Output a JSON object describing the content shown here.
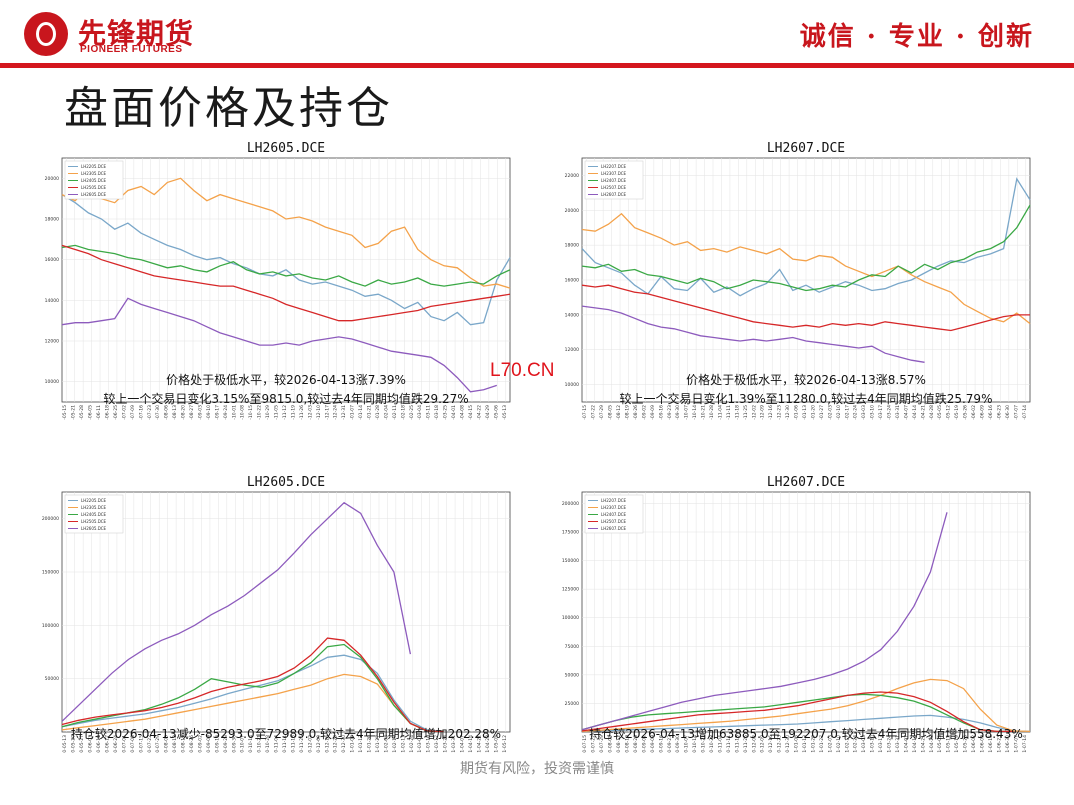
{
  "header": {
    "logo_cn": "先锋期货",
    "logo_en": "PIONEER FUTURES",
    "slogan": "诚信 · 专业 · 创新"
  },
  "page_title": "盘面价格及持仓",
  "watermark": "L70.CN",
  "footer": "期货有风险，投资需谨慎",
  "colors": {
    "c1": "#7aa7c9",
    "c2": "#f4a24a",
    "c3": "#3aa845",
    "c4": "#d62728",
    "c5": "#8d5bbd"
  },
  "chart_data": [
    {
      "type": "line",
      "title": "LH2605.DCE",
      "xlabel": "",
      "ylabel": "",
      "ylim": [
        9000,
        21000
      ],
      "yticks": [
        "10000",
        "12000",
        "14000",
        "16000",
        "18000",
        "20000"
      ],
      "legend": [
        "LH2205.DCE",
        "LH2305.DCE",
        "LH2405.DCE",
        "LH2505.DCE",
        "LH2605.DCE"
      ],
      "legend_position": "top-left",
      "annotation": [
        "价格处于极低水平，较2026-04-13涨7.39%",
        "较上一个交易日变化3.15%至9815.0,较过去4年同期均值跌29.27%"
      ],
      "xticks": [
        "0-05-15",
        "0-05-21",
        "0-05-28",
        "0-06-05",
        "0-06-11",
        "0-06-18",
        "0-06-25",
        "0-07-02",
        "0-07-09",
        "0-07-16",
        "0-07-23",
        "0-07-30",
        "0-08-06",
        "0-08-13",
        "0-08-20",
        "0-08-27",
        "0-09-03",
        "0-09-10",
        "0-09-17",
        "0-09-24",
        "0-10-01",
        "0-10-08",
        "0-10-15",
        "0-10-22",
        "0-10-29",
        "0-11-05",
        "0-11-12",
        "0-11-19",
        "0-11-26",
        "0-12-03",
        "0-12-10",
        "0-12-17",
        "0-12-24",
        "0-12-31",
        "1-01-07",
        "1-01-14",
        "1-01-21",
        "1-01-28",
        "1-02-04",
        "1-02-11",
        "1-02-18",
        "1-02-25",
        "1-03-04",
        "1-03-11",
        "1-03-18",
        "1-03-25",
        "1-04-01",
        "1-04-08",
        "1-04-15",
        "1-04-22",
        "1-04-29",
        "1-05-06",
        "1-05-13"
      ],
      "series": [
        {
          "name": "LH2205.DCE",
          "values": [
            19200,
            18800,
            18300,
            18000,
            17500,
            17800,
            17300,
            17000,
            16700,
            16500,
            16200,
            16000,
            16100,
            15800,
            15600,
            15300,
            15200,
            15500,
            15000,
            14800,
            14900,
            14700,
            14500,
            14200,
            14300,
            14000,
            13600,
            13900,
            13200,
            13000,
            13400,
            12800,
            12900,
            15000,
            16100
          ]
        },
        {
          "name": "LH2305.DCE",
          "values": [
            19200,
            18900,
            19600,
            19000,
            18800,
            19400,
            19600,
            19200,
            19800,
            20000,
            19400,
            18900,
            19200,
            19000,
            18800,
            18600,
            18400,
            18000,
            18100,
            17900,
            17600,
            17400,
            17200,
            16600,
            16800,
            17400,
            17600,
            16500,
            16000,
            15700,
            15600,
            15100,
            14700,
            14800,
            14600
          ]
        },
        {
          "name": "LH2405.DCE",
          "values": [
            16600,
            16700,
            16500,
            16400,
            16300,
            16100,
            16000,
            15800,
            15600,
            15700,
            15500,
            15400,
            15700,
            15900,
            15500,
            15300,
            15400,
            15200,
            15300,
            15100,
            15000,
            15200,
            14900,
            14700,
            15000,
            14800,
            14900,
            15100,
            14800,
            14700,
            14800,
            14900,
            14800,
            15200,
            15500
          ]
        },
        {
          "name": "LH2505.DCE",
          "values": [
            16700,
            16500,
            16300,
            16000,
            15800,
            15600,
            15400,
            15200,
            15100,
            15000,
            14900,
            14800,
            14700,
            14700,
            14500,
            14300,
            14100,
            13800,
            13600,
            13400,
            13200,
            13000,
            13000,
            13100,
            13200,
            13300,
            13400,
            13500,
            13700,
            13800,
            13900,
            14000,
            14100,
            14200,
            14300
          ]
        },
        {
          "name": "LH2605.DCE",
          "values": [
            12800,
            12900,
            12900,
            13000,
            13100,
            14100,
            13800,
            13600,
            13400,
            13200,
            13000,
            12700,
            12400,
            12200,
            12000,
            11800,
            11800,
            11900,
            11800,
            12000,
            12100,
            12200,
            12100,
            11900,
            11700,
            11500,
            11400,
            11300,
            11200,
            10800,
            10200,
            9500,
            9600,
            9815
          ]
        }
      ]
    },
    {
      "type": "line",
      "title": "LH2607.DCE",
      "xlabel": "",
      "ylabel": "",
      "ylim": [
        9000,
        23000
      ],
      "yticks": [
        "10000",
        "12000",
        "14000",
        "16000",
        "18000",
        "20000",
        "22000"
      ],
      "legend": [
        "LH2207.DCE",
        "LH2307.DCE",
        "LH2407.DCE",
        "LH2507.DCE",
        "LH2607.DCE"
      ],
      "legend_position": "top-left",
      "annotation": [
        "价格处于极低水平，较2026-04-13涨8.57%",
        "较上一个交易日变化1.39%至11280.0,较过去4年同期均值跌25.79%"
      ],
      "xticks": [
        "0-07-15",
        "0-07-22",
        "0-07-29",
        "0-08-05",
        "0-08-12",
        "0-08-19",
        "0-08-26",
        "0-09-02",
        "0-09-09",
        "0-09-16",
        "0-09-23",
        "0-09-30",
        "0-10-07",
        "0-10-14",
        "0-10-21",
        "0-10-28",
        "0-11-04",
        "0-11-11",
        "0-11-18",
        "0-11-25",
        "0-12-02",
        "0-12-09",
        "0-12-16",
        "0-12-23",
        "0-12-30",
        "1-01-06",
        "1-01-13",
        "1-01-20",
        "1-01-27",
        "1-02-03",
        "1-02-10",
        "1-02-17",
        "1-02-24",
        "1-03-03",
        "1-03-10",
        "1-03-17",
        "1-03-24",
        "1-03-31",
        "1-04-07",
        "1-04-14",
        "1-04-21",
        "1-04-28",
        "1-05-05",
        "1-05-12",
        "1-05-19",
        "1-05-26",
        "1-06-02",
        "1-06-09",
        "1-06-16",
        "1-06-23",
        "1-06-30",
        "1-07-07",
        "1-07-14"
      ],
      "series": [
        {
          "name": "LH2207.DCE",
          "values": [
            17800,
            17000,
            16700,
            16400,
            15700,
            15200,
            16200,
            15500,
            15400,
            16100,
            15300,
            15600,
            15100,
            15500,
            15800,
            16600,
            15400,
            15700,
            15300,
            15600,
            15900,
            15700,
            15400,
            15500,
            15800,
            16000,
            16400,
            16800,
            17100,
            17000,
            17300,
            17500,
            17800,
            21800,
            20600
          ]
        },
        {
          "name": "LH2307.DCE",
          "values": [
            18900,
            18800,
            19200,
            19800,
            19000,
            18700,
            18400,
            18000,
            18200,
            17700,
            17800,
            17600,
            17900,
            17700,
            17500,
            17800,
            17200,
            17100,
            17400,
            17300,
            16800,
            16500,
            16200,
            16500,
            16800,
            16300,
            15900,
            15600,
            15300,
            14600,
            14200,
            13800,
            13600,
            14100,
            13500
          ]
        },
        {
          "name": "LH2407.DCE",
          "values": [
            16800,
            16700,
            16900,
            16500,
            16600,
            16300,
            16200,
            16000,
            15800,
            16100,
            15900,
            15500,
            15700,
            16000,
            15900,
            15800,
            15600,
            15400,
            15500,
            15700,
            15600,
            16000,
            16300,
            16200,
            16800,
            16400,
            16900,
            16600,
            17000,
            17200,
            17600,
            17800,
            18200,
            19000,
            20300
          ]
        },
        {
          "name": "LH2507.DCE",
          "values": [
            15700,
            15600,
            15700,
            15500,
            15300,
            15200,
            15000,
            14800,
            14600,
            14400,
            14200,
            14000,
            13800,
            13600,
            13500,
            13400,
            13300,
            13400,
            13300,
            13500,
            13400,
            13500,
            13400,
            13600,
            13500,
            13400,
            13300,
            13200,
            13100,
            13300,
            13500,
            13700,
            13900,
            14000,
            14000
          ]
        },
        {
          "name": "LH2607.DCE",
          "values": [
            14500,
            14400,
            14300,
            14100,
            13800,
            13500,
            13300,
            13200,
            13000,
            12800,
            12700,
            12600,
            12500,
            12600,
            12500,
            12600,
            12700,
            12500,
            12400,
            12300,
            12200,
            12100,
            12200,
            11800,
            11600,
            11400,
            11280
          ]
        }
      ]
    },
    {
      "type": "line",
      "title": "LH2605.DCE",
      "xlabel": "",
      "ylabel": "",
      "ylim": [
        0,
        225000
      ],
      "yticks": [
        "50000",
        "100000",
        "150000",
        "200000"
      ],
      "legend": [
        "LH2205.DCE",
        "LH2305.DCE",
        "LH2405.DCE",
        "LH2505.DCE",
        "LH2605.DCE"
      ],
      "legend_position": "top-left",
      "annotation": [
        "持仓较2026-04-13减少-85293.0至72989.0,较过去4年同期均值增加202.28%"
      ],
      "xticks": [
        "0-05-13",
        "0-05-20",
        "0-05-27",
        "0-06-03",
        "0-06-10",
        "0-06-17",
        "0-06-24",
        "0-07-01",
        "0-07-08",
        "0-07-15",
        "0-07-22",
        "0-07-29",
        "0-08-05",
        "0-08-12",
        "0-08-19",
        "0-08-26",
        "0-09-02",
        "0-09-09",
        "0-09-16",
        "0-09-23",
        "0-09-30",
        "0-10-07",
        "0-10-14",
        "0-10-21",
        "0-10-28",
        "0-11-04",
        "0-11-11",
        "0-11-18",
        "0-11-25",
        "0-12-02",
        "0-12-09",
        "0-12-16",
        "0-12-23",
        "0-12-30",
        "1-01-06",
        "1-01-13",
        "1-01-20",
        "1-01-27",
        "1-02-03",
        "1-02-10",
        "1-02-17",
        "1-02-24",
        "1-03-03",
        "1-03-10",
        "1-03-17",
        "1-03-24",
        "1-03-31",
        "1-04-07",
        "1-04-14",
        "1-04-21",
        "1-04-28",
        "1-05-05",
        "1-05-12"
      ],
      "series": [
        {
          "name": "LH2205.DCE",
          "values": [
            5000,
            8000,
            11000,
            13000,
            15000,
            17000,
            20000,
            23000,
            27000,
            31000,
            36000,
            40000,
            44000,
            48000,
            55000,
            62000,
            70000,
            72000,
            68000,
            55000,
            30000,
            10000,
            2000,
            500
          ]
        },
        {
          "name": "LH2305.DCE",
          "values": [
            2000,
            4000,
            6000,
            8000,
            10000,
            12000,
            15000,
            18000,
            21000,
            24000,
            27000,
            30000,
            33000,
            36000,
            40000,
            44000,
            50000,
            54000,
            52000,
            45000,
            25000,
            8000,
            1000,
            500
          ]
        },
        {
          "name": "LH2405.DCE",
          "values": [
            5000,
            9000,
            12000,
            15000,
            18000,
            21000,
            26000,
            32000,
            40000,
            50000,
            47000,
            44000,
            42000,
            46000,
            55000,
            65000,
            80000,
            82000,
            70000,
            50000,
            25000,
            8000,
            1000,
            500
          ]
        },
        {
          "name": "LH2505.DCE",
          "values": [
            7000,
            11000,
            14000,
            16000,
            18000,
            20000,
            23000,
            27000,
            32000,
            38000,
            42000,
            45000,
            48000,
            52000,
            60000,
            72000,
            88000,
            86000,
            72000,
            52000,
            28000,
            8000,
            1000,
            500
          ]
        },
        {
          "name": "LH2605.DCE",
          "values": [
            10000,
            25000,
            40000,
            55000,
            68000,
            78000,
            86000,
            92000,
            100000,
            110000,
            118000,
            128000,
            140000,
            152000,
            168000,
            185000,
            200000,
            215000,
            205000,
            175000,
            150000,
            72989
          ]
        }
      ]
    },
    {
      "type": "line",
      "title": "LH2607.DCE",
      "xlabel": "",
      "ylabel": "",
      "ylim": [
        0,
        210000
      ],
      "yticks": [
        "25000",
        "50000",
        "75000",
        "100000",
        "125000",
        "150000",
        "175000",
        "200000"
      ],
      "legend": [
        "LH2207.DCE",
        "LH2307.DCE",
        "LH2407.DCE",
        "LH2507.DCE",
        "LH2607.DCE"
      ],
      "legend_position": "top-left",
      "annotation": [
        "持仓较2026-04-13增加63885.0至192207.0,较过去4年同期均值增加558.43%"
      ],
      "xticks": [
        "0-07-15",
        "0-07-22",
        "0-07-29",
        "0-08-05",
        "0-08-12",
        "0-08-19",
        "0-08-26",
        "0-09-02",
        "0-09-09",
        "0-09-16",
        "0-09-23",
        "0-09-30",
        "0-10-07",
        "0-10-14",
        "0-10-21",
        "0-10-28",
        "0-11-04",
        "0-11-11",
        "0-11-18",
        "0-11-25",
        "0-12-02",
        "0-12-09",
        "0-12-16",
        "0-12-23",
        "0-12-30",
        "1-01-06",
        "1-01-13",
        "1-01-20",
        "1-01-27",
        "1-02-03",
        "1-02-10",
        "1-02-17",
        "1-02-24",
        "1-03-03",
        "1-03-10",
        "1-03-17",
        "1-03-24",
        "1-03-31",
        "1-04-07",
        "1-04-14",
        "1-04-21",
        "1-04-28",
        "1-05-05",
        "1-05-12",
        "1-05-19",
        "1-05-26",
        "1-06-02",
        "1-06-09",
        "1-06-16",
        "1-06-23",
        "1-06-30",
        "1-07-07",
        "1-07-14"
      ],
      "series": [
        {
          "name": "LH2207.DCE",
          "values": [
            500,
            1000,
            1500,
            2000,
            2500,
            3000,
            3500,
            4000,
            4500,
            5000,
            5500,
            6000,
            6500,
            7000,
            8000,
            9000,
            10000,
            11000,
            12000,
            13000,
            14000,
            14500,
            13000,
            11000,
            8000,
            4000,
            1000,
            500
          ]
        },
        {
          "name": "LH2307.DCE",
          "values": [
            500,
            1500,
            2500,
            3500,
            4500,
            5500,
            6500,
            7500,
            8500,
            9500,
            11000,
            12500,
            14000,
            16000,
            18000,
            20000,
            23000,
            27000,
            32000,
            38000,
            43000,
            46000,
            45000,
            38000,
            20000,
            6000,
            1000,
            500
          ]
        },
        {
          "name": "LH2407.DCE",
          "values": [
            2000,
            6000,
            10000,
            13000,
            15000,
            16000,
            17000,
            18000,
            19000,
            20000,
            21000,
            22000,
            24000,
            26000,
            28000,
            30000,
            32000,
            33000,
            32000,
            30000,
            27000,
            22000,
            15000,
            8000,
            2000,
            500,
            500
          ]
        },
        {
          "name": "LH2507.DCE",
          "values": [
            1000,
            3000,
            5000,
            7000,
            9000,
            11000,
            13000,
            15000,
            16000,
            17000,
            18000,
            19000,
            21000,
            23000,
            26000,
            29000,
            32000,
            34000,
            35000,
            34000,
            31000,
            26000,
            18000,
            9000,
            2000,
            500,
            500
          ]
        },
        {
          "name": "LH2607.DCE",
          "values": [
            2000,
            6000,
            10000,
            14000,
            18000,
            22000,
            26000,
            29000,
            32000,
            34000,
            36000,
            38000,
            40000,
            43000,
            46000,
            50000,
            55000,
            62000,
            72000,
            88000,
            110000,
            140000,
            192207
          ]
        }
      ]
    }
  ]
}
